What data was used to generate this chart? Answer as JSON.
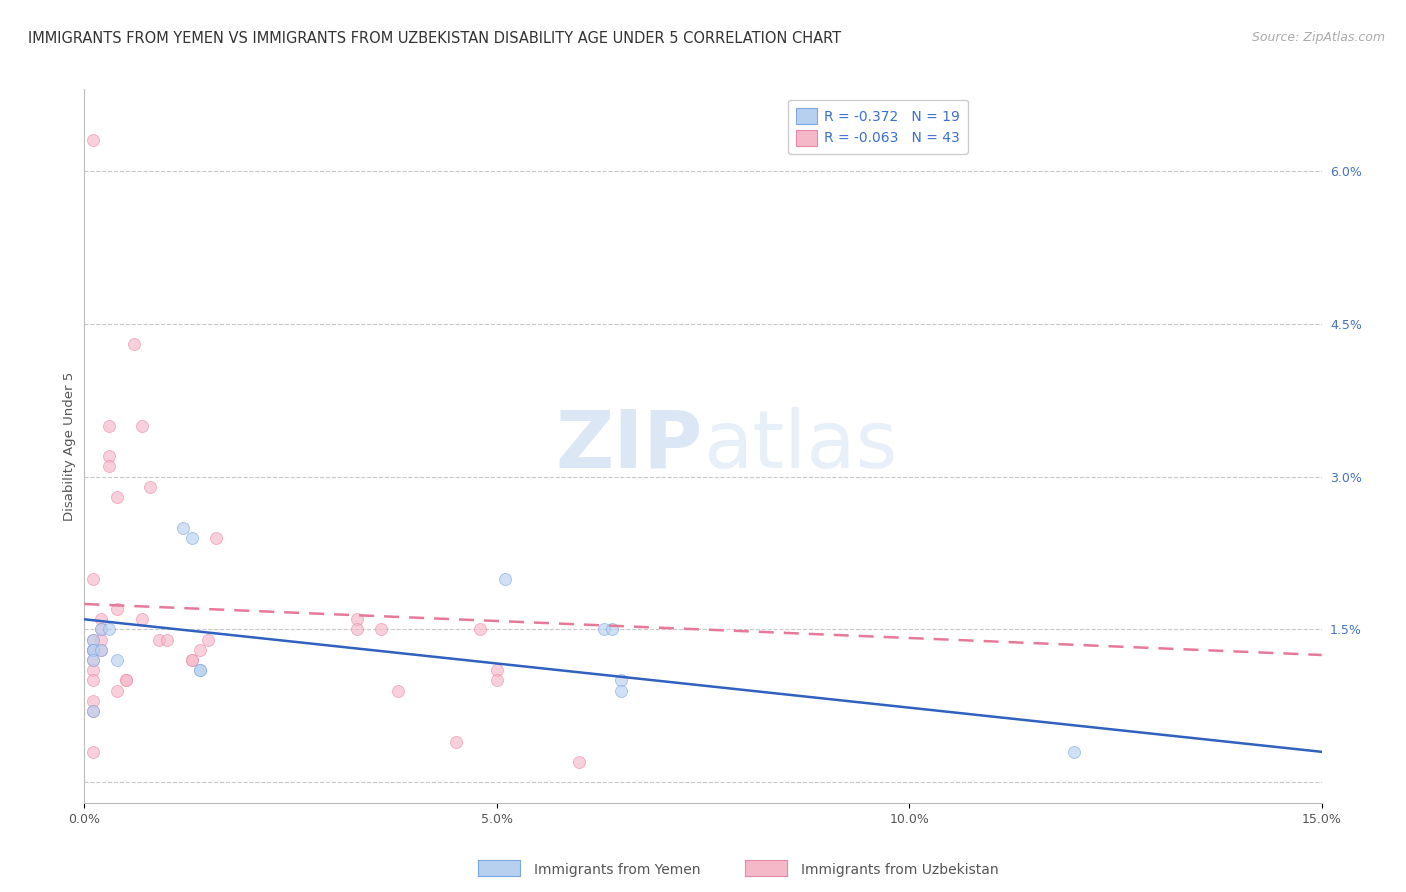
{
  "title": "IMMIGRANTS FROM YEMEN VS IMMIGRANTS FROM UZBEKISTAN DISABILITY AGE UNDER 5 CORRELATION CHART",
  "source": "Source: ZipAtlas.com",
  "ylabel": "Disability Age Under 5",
  "xlim": [
    0,
    0.15
  ],
  "ylim": [
    -0.002,
    0.068
  ],
  "xticks": [
    0.0,
    0.05,
    0.1,
    0.15
  ],
  "xticklabels": [
    "0.0%",
    "5.0%",
    "10.0%",
    "15.0%"
  ],
  "yticks_right": [
    0.0,
    0.015,
    0.03,
    0.045,
    0.06
  ],
  "ytick_right_labels": [
    "",
    "1.5%",
    "3.0%",
    "4.5%",
    "6.0%"
  ],
  "grid_color": "#c8c8c8",
  "background_color": "#ffffff",
  "legend_R_yemen": "-0.372",
  "legend_N_yemen": "19",
  "legend_R_uzbekistan": "-0.063",
  "legend_N_uzbekistan": "43",
  "yemen_color": "#b8d0f0",
  "uzbekistan_color": "#f5b8c8",
  "yemen_edge_color": "#7aa8e0",
  "uzbekistan_edge_color": "#e888a8",
  "trend_yemen_color": "#3060c0",
  "trend_uzbekistan_color": "#e87898",
  "yemen_points_x": [
    0.001,
    0.001,
    0.001,
    0.001,
    0.001,
    0.002,
    0.002,
    0.003,
    0.004,
    0.012,
    0.013,
    0.014,
    0.014,
    0.051,
    0.063,
    0.064,
    0.065,
    0.065,
    0.12
  ],
  "yemen_points_y": [
    0.014,
    0.013,
    0.013,
    0.012,
    0.007,
    0.015,
    0.013,
    0.015,
    0.012,
    0.025,
    0.024,
    0.011,
    0.011,
    0.02,
    0.015,
    0.015,
    0.01,
    0.009,
    0.003
  ],
  "uzbekistan_points_x": [
    0.001,
    0.001,
    0.001,
    0.001,
    0.001,
    0.001,
    0.001,
    0.001,
    0.001,
    0.001,
    0.001,
    0.002,
    0.002,
    0.002,
    0.002,
    0.003,
    0.003,
    0.003,
    0.004,
    0.004,
    0.004,
    0.005,
    0.005,
    0.006,
    0.007,
    0.007,
    0.008,
    0.009,
    0.01,
    0.013,
    0.013,
    0.014,
    0.015,
    0.016,
    0.033,
    0.033,
    0.036,
    0.038,
    0.045,
    0.048,
    0.05,
    0.05,
    0.06
  ],
  "uzbekistan_points_y": [
    0.063,
    0.02,
    0.014,
    0.013,
    0.013,
    0.012,
    0.011,
    0.01,
    0.008,
    0.007,
    0.003,
    0.016,
    0.015,
    0.014,
    0.013,
    0.035,
    0.032,
    0.031,
    0.028,
    0.017,
    0.009,
    0.01,
    0.01,
    0.043,
    0.035,
    0.016,
    0.029,
    0.014,
    0.014,
    0.012,
    0.012,
    0.013,
    0.014,
    0.024,
    0.016,
    0.015,
    0.015,
    0.009,
    0.004,
    0.015,
    0.011,
    0.01,
    0.002
  ],
  "trend_yemen_x0": 0.0,
  "trend_yemen_x1": 0.15,
  "trend_yemen_y0": 0.016,
  "trend_yemen_y1": 0.003,
  "trend_uzbekistan_x0": 0.0,
  "trend_uzbekistan_x1": 0.15,
  "trend_uzbekistan_y0": 0.0175,
  "trend_uzbekistan_y1": 0.0125,
  "marker_size": 75,
  "marker_alpha": 0.65,
  "title_fontsize": 10.5,
  "axis_label_fontsize": 9.5,
  "tick_fontsize": 9,
  "legend_fontsize": 10,
  "source_fontsize": 9
}
